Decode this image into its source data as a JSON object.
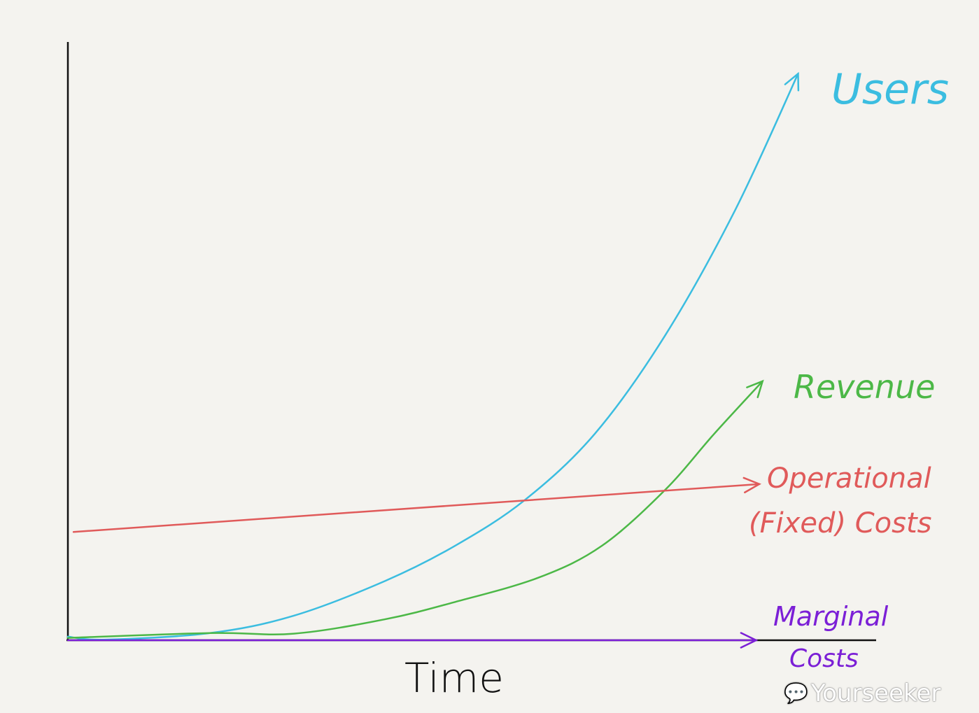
{
  "chart_data": {
    "type": "line",
    "title": "",
    "xlabel": "Time",
    "ylabel": "",
    "grid": false,
    "xlim": [
      0,
      100
    ],
    "ylim": [
      0,
      100
    ],
    "legend": "inline-right",
    "series": [
      {
        "name": "Users",
        "color": "#3bbde0",
        "x": [
          0,
          4.6,
          17.6,
          28,
          39.3,
          48,
          56.6,
          65.3,
          74,
          82.7,
          90.5
        ],
        "y": [
          0.6,
          0.1,
          1.2,
          4.1,
          9.9,
          15.8,
          23.4,
          34.5,
          50.9,
          71.9,
          94.7
        ]
      },
      {
        "name": "Revenue",
        "color": "#4cb847",
        "x": [
          0,
          17.6,
          28,
          39.3,
          48,
          58.4,
          66.2,
          74,
          80.1,
          86.1
        ],
        "y": [
          0.4,
          1.2,
          1.1,
          3.5,
          6.4,
          10.5,
          15.8,
          25.1,
          34.5,
          43.3
        ]
      },
      {
        "name": "Operational (Fixed) Costs",
        "color": "#e05a5a",
        "x": [
          0.7,
          85.7
        ],
        "y": [
          18.1,
          26.1
        ]
      },
      {
        "name": "Marginal Costs",
        "color": "#7b1fd6",
        "x": [
          0,
          85.3
        ],
        "y": [
          0,
          0
        ]
      }
    ]
  },
  "labels": {
    "users": "Users",
    "revenue": "Revenue",
    "operational_line1": "Operational",
    "operational_line2": "(Fixed) Costs",
    "marginal_line1": "Marginal",
    "marginal_line2": "Costs",
    "time": "Time"
  },
  "watermark": {
    "text": "Yourseeker",
    "icon": "wechat-icon"
  }
}
